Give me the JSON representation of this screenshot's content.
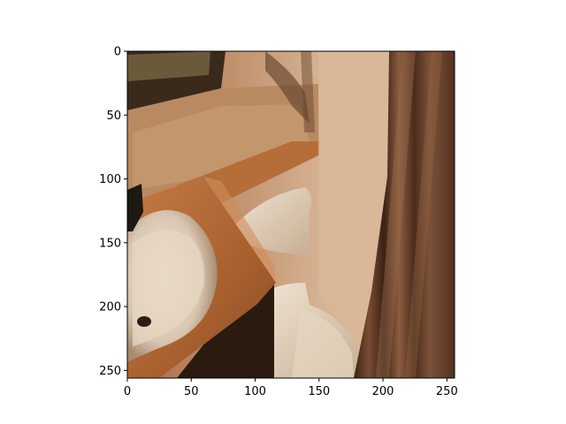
{
  "figure": {
    "background": "#ffffff",
    "image_subject": "bathroom with wooden countertop, white sink, white toilet and brown shower curtain"
  },
  "axes": {
    "x_ticks": [
      "0",
      "50",
      "100",
      "150",
      "200",
      "250"
    ],
    "y_ticks": [
      "0",
      "50",
      "100",
      "150",
      "200",
      "250"
    ],
    "x_range": [
      0,
      256
    ],
    "y_range": [
      0,
      256
    ],
    "y_inverted": true
  },
  "palette": {
    "countertop": "#b36a35",
    "countertop_dark": "#7a3f1a",
    "tile_wall": "#c6a27e",
    "curtain": "#4a2a1a",
    "curtain_light": "#8a5a3e",
    "porcelain": "#e8dccb",
    "wall": "#d9b89a"
  }
}
